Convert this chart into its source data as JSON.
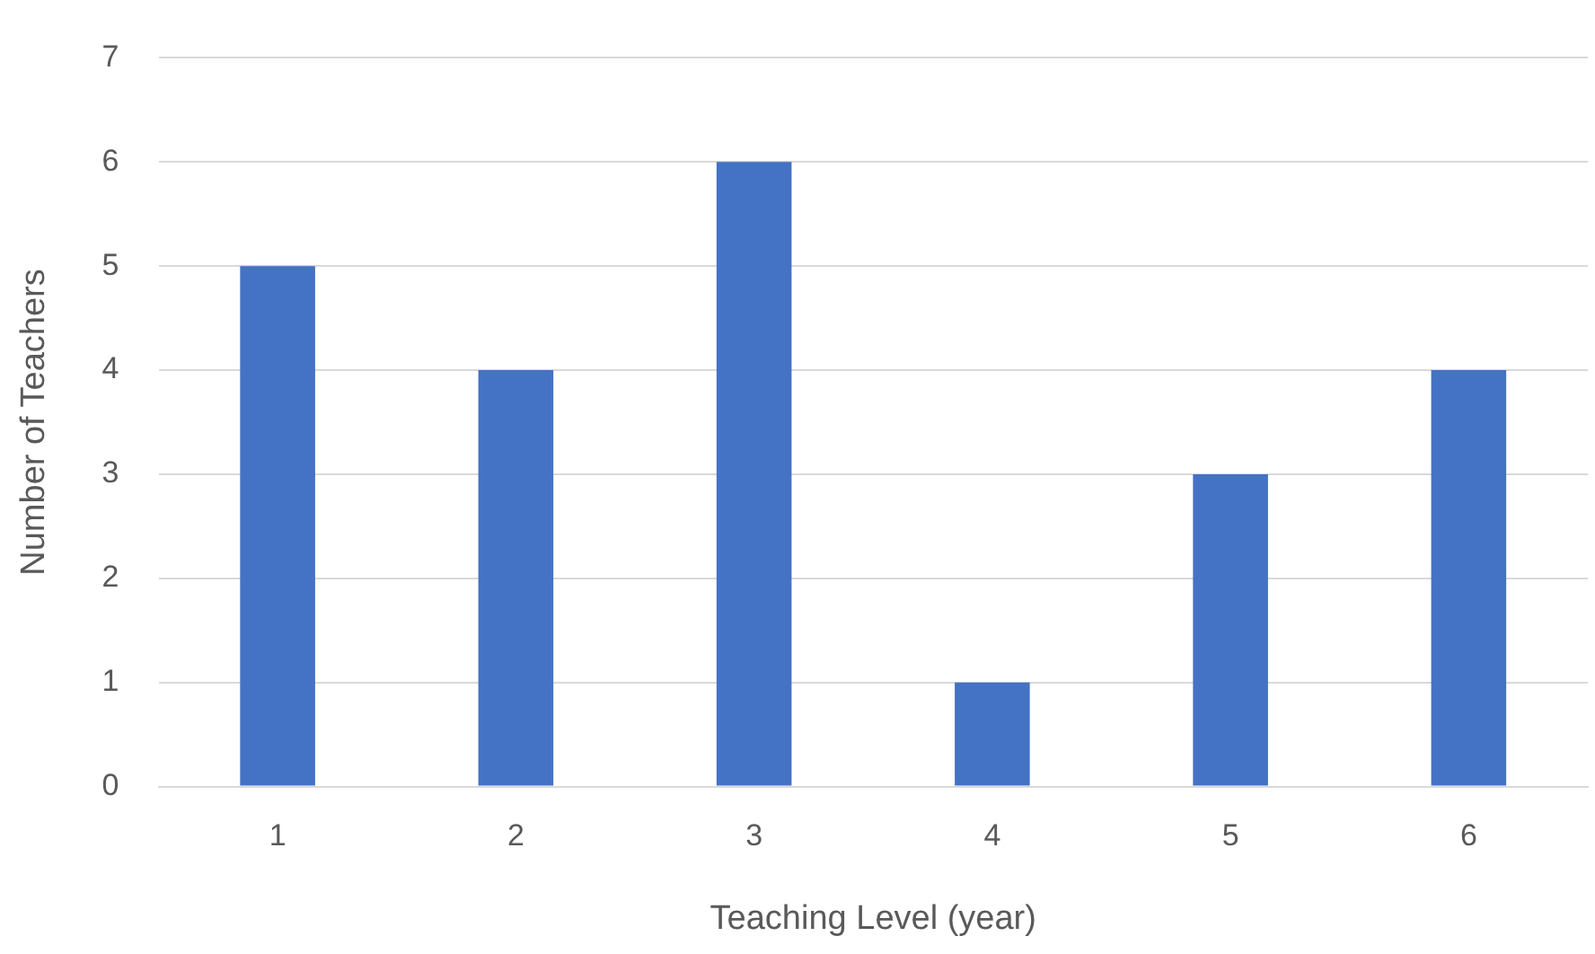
{
  "chart_data": {
    "type": "bar",
    "xlabel": "Teaching Level (year)",
    "ylabel": "Number of Teachers",
    "categories": [
      "1",
      "2",
      "3",
      "4",
      "5",
      "6"
    ],
    "values": [
      5,
      4,
      6,
      1,
      3,
      4
    ],
    "color": "#4472c4",
    "ylim": [
      0,
      7
    ],
    "yticks": [
      0,
      1,
      2,
      3,
      4,
      5,
      6,
      7
    ],
    "grid": "y",
    "legend": false
  }
}
